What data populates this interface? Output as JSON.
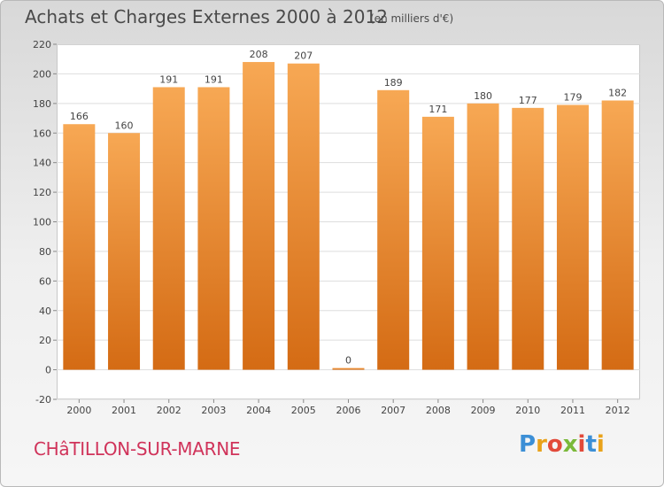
{
  "header": {
    "title": "Achats et Charges Externes 2000 à 2012",
    "unit_note": "(en milliers d'€)"
  },
  "footer": {
    "commune": "CHâTILLON-SUR-MARNE",
    "brand": "Proxiti"
  },
  "colors": {
    "bar_top": "#f7a854",
    "bar_bottom": "#d46b14",
    "grid": "#dddddd",
    "commune_text": "#d0335a"
  },
  "chart_data": {
    "type": "bar",
    "title": "Achats et Charges Externes 2000 à 2012",
    "subtitle": "(en milliers d'€)",
    "categories": [
      "2000",
      "2001",
      "2002",
      "2003",
      "2004",
      "2005",
      "2006",
      "2007",
      "2008",
      "2009",
      "2010",
      "2011",
      "2012"
    ],
    "values": [
      166,
      160,
      191,
      191,
      208,
      207,
      0,
      189,
      171,
      180,
      177,
      179,
      182
    ],
    "ylim": [
      -20,
      220
    ],
    "yticks": [
      -20,
      0,
      20,
      40,
      60,
      80,
      100,
      120,
      140,
      160,
      180,
      200,
      220
    ],
    "grid": true,
    "xlabel": "",
    "ylabel": ""
  }
}
